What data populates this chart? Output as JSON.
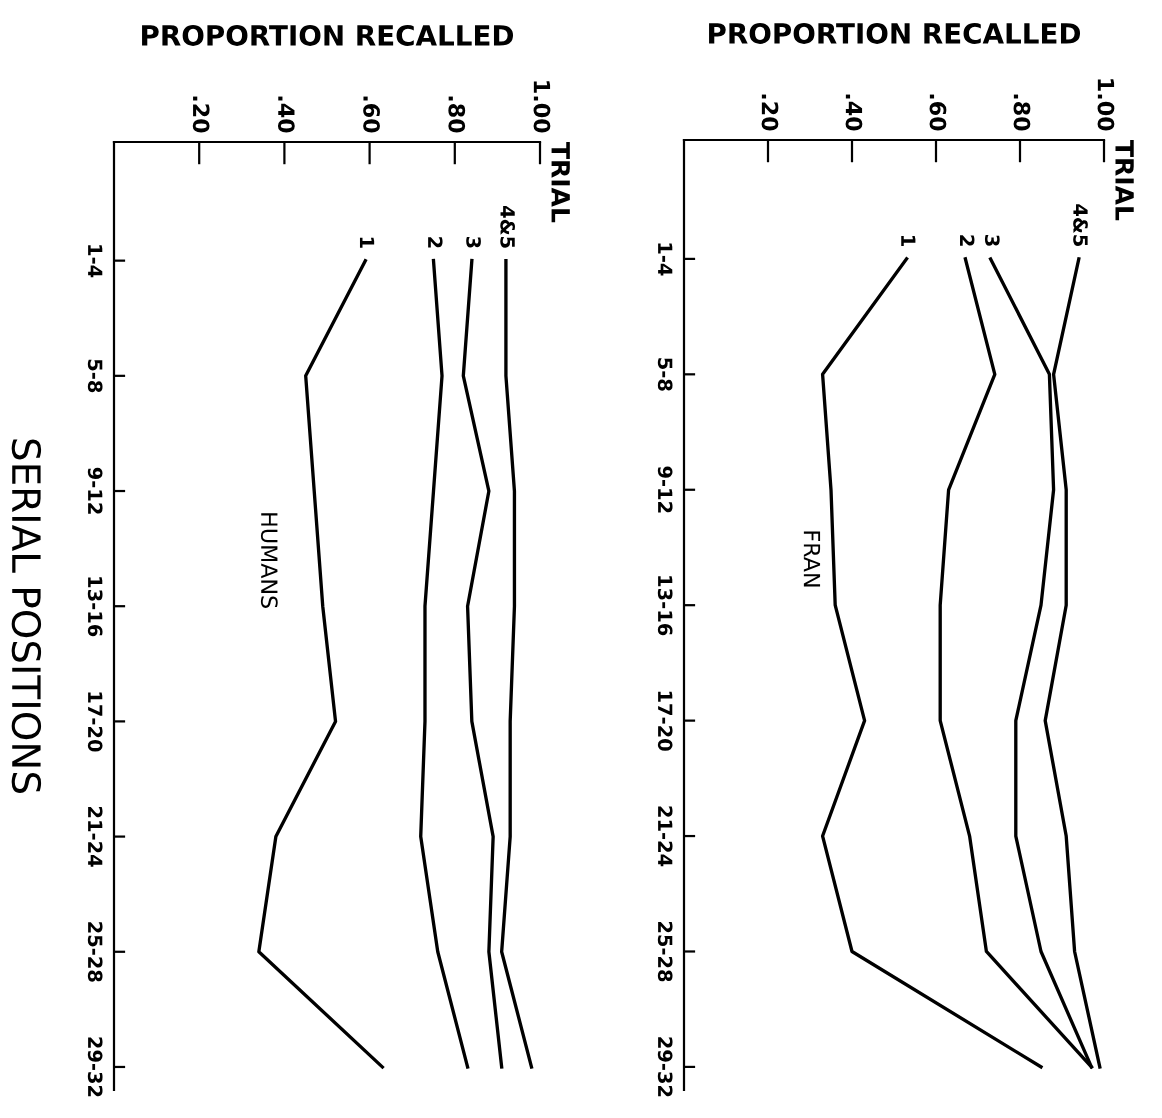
{
  "chart_data": [
    {
      "type": "line",
      "orientation": "horizontal",
      "title": "HUMANS",
      "xlabel": "PROPORTION RECALLED",
      "ylabel": "SERIAL POSITIONS",
      "legend_title": "TRIAL",
      "categories": [
        "1-4",
        "5-8",
        "9-12",
        "13-16",
        "17-20",
        "21-24",
        "25-28",
        "29-32"
      ],
      "xlim": [
        0,
        1.0
      ],
      "xticks": [
        {
          "value": 0.2,
          "label": ".20"
        },
        {
          "value": 0.4,
          "label": ".40"
        },
        {
          "value": 0.6,
          "label": ".60"
        },
        {
          "value": 0.8,
          "label": ".80"
        },
        {
          "value": 1.0,
          "label": "1.00"
        }
      ],
      "series": [
        {
          "name": "1",
          "color": "#000000",
          "values": [
            0.59,
            0.45,
            0.47,
            0.49,
            0.52,
            0.38,
            0.34,
            0.63
          ]
        },
        {
          "name": "2",
          "color": "#000000",
          "values": [
            0.75,
            0.77,
            0.75,
            0.73,
            0.73,
            0.72,
            0.76,
            0.83
          ]
        },
        {
          "name": "3",
          "color": "#000000",
          "values": [
            0.84,
            0.82,
            0.88,
            0.83,
            0.84,
            0.89,
            0.88,
            0.91
          ]
        },
        {
          "name": "4&5",
          "color": "#000000",
          "values": [
            0.92,
            0.92,
            0.94,
            0.94,
            0.93,
            0.93,
            0.91,
            0.98
          ]
        }
      ]
    },
    {
      "type": "line",
      "orientation": "horizontal",
      "title": "FRAN",
      "xlabel": "PROPORTION RECALLED",
      "legend_title": "TRIAL",
      "categories": [
        "1-4",
        "5-8",
        "9-12",
        "13-16",
        "17-20",
        "21-24",
        "25-28",
        "29-32"
      ],
      "xlim": [
        0,
        1.0
      ],
      "xticks": [
        {
          "value": 0.2,
          "label": ".20"
        },
        {
          "value": 0.4,
          "label": ".40"
        },
        {
          "value": 0.6,
          "label": ".60"
        },
        {
          "value": 0.8,
          "label": ".80"
        },
        {
          "value": 1.0,
          "label": "1.00"
        }
      ],
      "series": [
        {
          "name": "1",
          "color": "#000000",
          "values": [
            0.53,
            0.33,
            0.35,
            0.36,
            0.43,
            0.33,
            0.4,
            0.85
          ]
        },
        {
          "name": "2",
          "color": "#000000",
          "values": [
            0.67,
            0.74,
            0.63,
            0.61,
            0.61,
            0.68,
            0.72,
            0.97
          ]
        },
        {
          "name": "3",
          "color": "#000000",
          "values": [
            0.73,
            0.87,
            0.88,
            0.85,
            0.79,
            0.79,
            0.85,
            0.97
          ]
        },
        {
          "name": "4&5",
          "color": "#000000",
          "values": [
            0.94,
            0.88,
            0.91,
            0.91,
            0.86,
            0.91,
            0.93,
            0.99
          ]
        }
      ]
    }
  ]
}
